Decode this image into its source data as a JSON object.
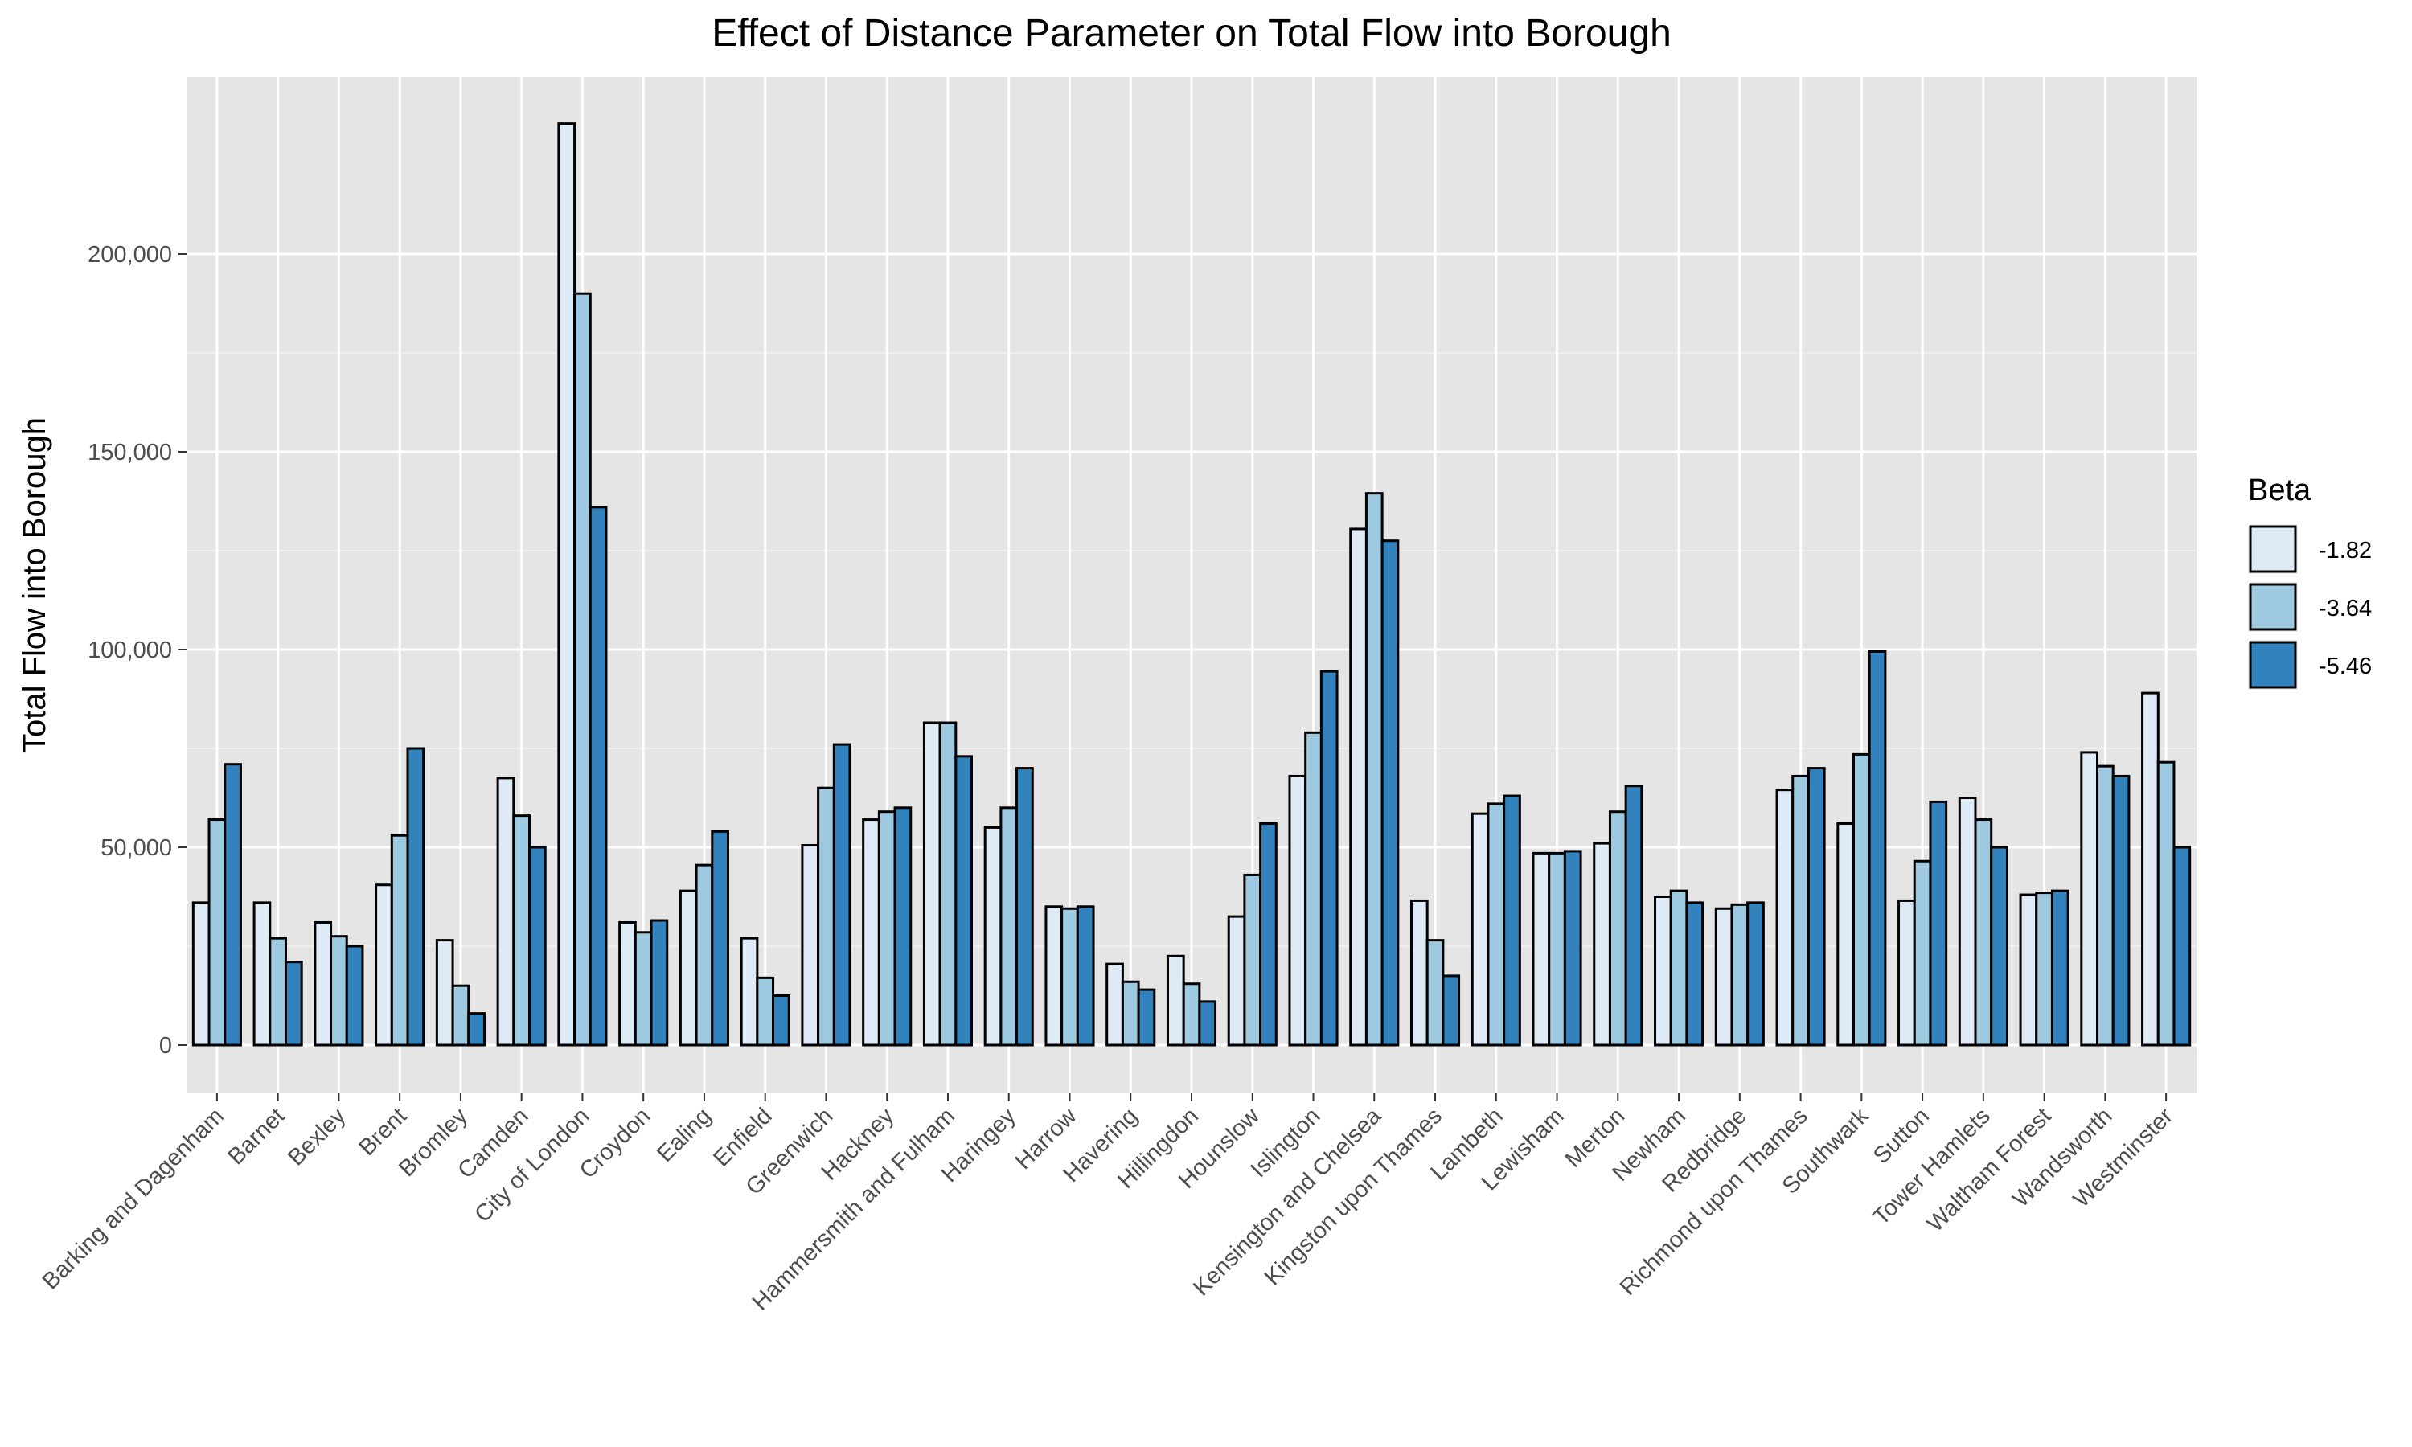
{
  "chart_data": {
    "type": "bar",
    "title": "Effect of Distance Parameter on Total Flow into Borough",
    "xlabel": "",
    "ylabel": "Total Flow into Borough",
    "ylim": [
      -11000,
      245000
    ],
    "yticks": [
      0,
      50000,
      100000,
      150000,
      200000
    ],
    "ytick_labels": [
      "0",
      "50,000",
      "100,000",
      "150,000",
      "200,000"
    ],
    "grid": true,
    "legend": {
      "title": "Beta",
      "position": "right"
    },
    "categories": [
      "Barking and Dagenham",
      "Barnet",
      "Bexley",
      "Brent",
      "Bromley",
      "Camden",
      "City of London",
      "Croydon",
      "Ealing",
      "Enfield",
      "Greenwich",
      "Hackney",
      "Hammersmith and Fulham",
      "Haringey",
      "Harrow",
      "Havering",
      "Hillingdon",
      "Hounslow",
      "Islington",
      "Kensington and Chelsea",
      "Kingston upon Thames",
      "Lambeth",
      "Lewisham",
      "Merton",
      "Newham",
      "Redbridge",
      "Richmond upon Thames",
      "Southwark",
      "Sutton",
      "Tower Hamlets",
      "Waltham Forest",
      "Wandsworth",
      "Westminster"
    ],
    "series": [
      {
        "name": "-1.82",
        "color": "#deebf7",
        "values": [
          36000,
          36000,
          31000,
          40500,
          26500,
          67500,
          233000,
          31000,
          39000,
          27000,
          50500,
          57000,
          81500,
          55000,
          35000,
          20500,
          22500,
          32500,
          68000,
          130500,
          36500,
          58500,
          48500,
          51000,
          37500,
          34500,
          64500,
          56000,
          36500,
          62500,
          38000,
          74000,
          89000
        ]
      },
      {
        "name": "-3.64",
        "color": "#9ecae1",
        "values": [
          57000,
          27000,
          27500,
          53000,
          15000,
          58000,
          190000,
          28500,
          45500,
          17000,
          65000,
          59000,
          81500,
          60000,
          34500,
          16000,
          15500,
          43000,
          79000,
          139500,
          26500,
          61000,
          48500,
          59000,
          39000,
          35500,
          68000,
          73500,
          46500,
          57000,
          38500,
          70500,
          71500
        ]
      },
      {
        "name": "-5.46",
        "color": "#3182bd",
        "values": [
          71000,
          21000,
          25000,
          75000,
          8000,
          50000,
          136000,
          31500,
          54000,
          12500,
          76000,
          60000,
          73000,
          70000,
          35000,
          14000,
          11000,
          56000,
          94500,
          127500,
          17500,
          63000,
          49000,
          65500,
          36000,
          36000,
          70000,
          99500,
          61500,
          50000,
          39000,
          68000,
          50000
        ]
      }
    ]
  }
}
